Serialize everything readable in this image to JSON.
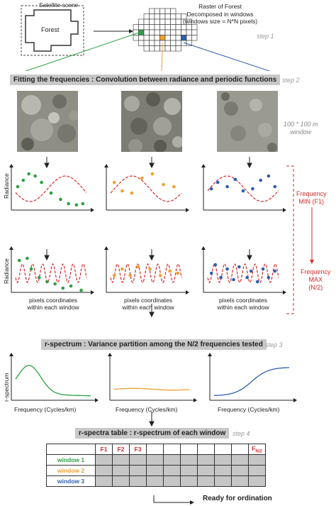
{
  "step1": {
    "satellite_title": "Satellite scene",
    "forest_label": "Forest",
    "raster_title_lines": [
      "Raster of Forest",
      "Decomposed in windows",
      "(windows size = N*N pixels)"
    ],
    "step_label": "step 1"
  },
  "step2": {
    "banner": "Fitting the frequencies : Convolution between radiance and periodic functions",
    "step_label": "step 2",
    "window_note_lines": [
      "100 * 100 m",
      "window"
    ],
    "y_label": "Radiance",
    "x_label_lines": [
      "pixels coordinates",
      "within each window"
    ],
    "freq_min_lines": [
      "Frequency",
      "MIN (F1)"
    ],
    "freq_max_lines": [
      "Frequency",
      "MAX",
      "(N/2)"
    ]
  },
  "step3": {
    "banner": "r-spectrum : Variance partition among the N/2 frequencies tested",
    "step_label": "step 3",
    "y_label": "r-spectrum",
    "x_label": "Frequency (Cycles/km)"
  },
  "step4": {
    "banner": "r-spectra table : r-spectrum of each window",
    "step_label": "step 4",
    "columns": [
      "F1",
      "F2",
      "F3",
      "",
      "",
      "",
      "",
      "",
      "",
      "FN/2"
    ],
    "rows": [
      {
        "label": "window 1",
        "color": "#2ea043"
      },
      {
        "label": "window 2",
        "color": "#f0a030"
      },
      {
        "label": "window 3",
        "color": "#2e5fb0"
      }
    ],
    "ready": "Ready for ordination"
  },
  "colors": {
    "green": "#2ea043",
    "orange": "#f0a030",
    "blue": "#2e5fb0",
    "red": "#d62a2a"
  }
}
